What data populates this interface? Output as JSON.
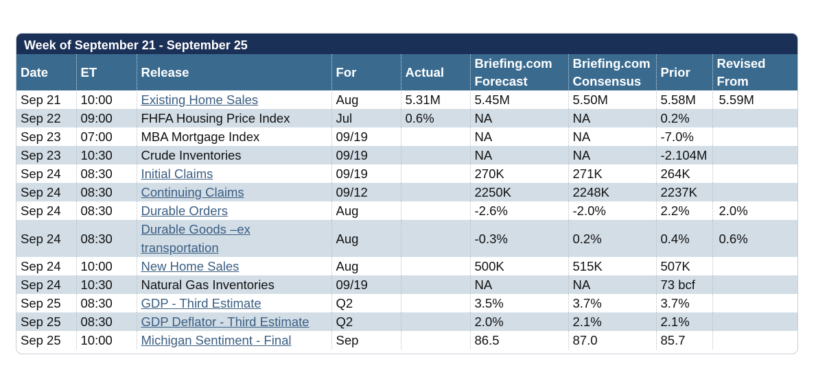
{
  "colors": {
    "week_bar_bg": "#1b3057",
    "header_bg": "#3a6b8f",
    "alt_row_bg": "#d2dde6",
    "link_color": "#3b5e82"
  },
  "week_title": "Week of September 21 - September 25",
  "columns": {
    "date": "Date",
    "et": "ET",
    "release": "Release",
    "for": "For",
    "actual": "Actual",
    "forecast": [
      "Briefing.com",
      "Forecast"
    ],
    "consensus": [
      "Briefing.com",
      "Consensus"
    ],
    "prior": "Prior",
    "revised": [
      "Revised",
      "From"
    ]
  },
  "rows": [
    {
      "date": "Sep 21",
      "et": "10:00",
      "release": "Existing Home Sales",
      "link": true,
      "for": "Aug",
      "actual": "5.31M",
      "forecast": "5.45M",
      "consensus": "5.50M",
      "prior": "5.58M",
      "revised": "5.59M"
    },
    {
      "date": "Sep 22",
      "et": "09:00",
      "release": "FHFA Housing Price Index",
      "link": false,
      "for": "Jul",
      "actual": "0.6%",
      "forecast": "NA",
      "consensus": "NA",
      "prior": "0.2%",
      "revised": ""
    },
    {
      "date": "Sep 23",
      "et": "07:00",
      "release": "MBA Mortgage Index",
      "link": false,
      "for": "09/19",
      "actual": "",
      "forecast": "NA",
      "consensus": "NA",
      "prior": "-7.0%",
      "revised": ""
    },
    {
      "date": "Sep 23",
      "et": "10:30",
      "release": "Crude Inventories",
      "link": false,
      "for": "09/19",
      "actual": "",
      "forecast": "NA",
      "consensus": "NA",
      "prior": "-2.104M",
      "revised": ""
    },
    {
      "date": "Sep 24",
      "et": "08:30",
      "release": "Initial Claims",
      "link": true,
      "for": "09/19",
      "actual": "",
      "forecast": "270K",
      "consensus": "271K",
      "prior": "264K",
      "revised": ""
    },
    {
      "date": "Sep 24",
      "et": "08:30",
      "release": "Continuing Claims",
      "link": true,
      "for": "09/12",
      "actual": "",
      "forecast": "2250K",
      "consensus": "2248K",
      "prior": "2237K",
      "revised": ""
    },
    {
      "date": "Sep 24",
      "et": "08:30",
      "release": "Durable Orders",
      "link": true,
      "for": "Aug",
      "actual": "",
      "forecast": "-2.6%",
      "consensus": "-2.0%",
      "prior": "2.2%",
      "revised": "2.0%"
    },
    {
      "date": "Sep 24",
      "et": "08:30",
      "release": "Durable Goods –ex transportation",
      "link": true,
      "tall": true,
      "for": "Aug",
      "actual": "",
      "forecast": "-0.3%",
      "consensus": "0.2%",
      "prior": "0.4%",
      "revised": "0.6%"
    },
    {
      "date": "Sep 24",
      "et": "10:00",
      "release": "New Home Sales",
      "link": true,
      "for": "Aug",
      "actual": "",
      "forecast": "500K",
      "consensus": "515K",
      "prior": "507K",
      "revised": ""
    },
    {
      "date": "Sep 24",
      "et": "10:30",
      "release": "Natural Gas Inventories",
      "link": false,
      "for": "09/19",
      "actual": "",
      "forecast": "NA",
      "consensus": "NA",
      "prior": "73 bcf",
      "revised": ""
    },
    {
      "date": "Sep 25",
      "et": "08:30",
      "release": "GDP - Third Estimate",
      "link": true,
      "for": "Q2",
      "actual": "",
      "forecast": "3.5%",
      "consensus": "3.7%",
      "prior": "3.7%",
      "revised": ""
    },
    {
      "date": "Sep 25",
      "et": "08:30",
      "release": "GDP Deflator - Third Estimate",
      "link": true,
      "for": "Q2",
      "actual": "",
      "forecast": "2.0%",
      "consensus": "2.1%",
      "prior": "2.1%",
      "revised": ""
    },
    {
      "date": "Sep 25",
      "et": "10:00",
      "release": "Michigan Sentiment - Final",
      "link": true,
      "for": "Sep",
      "actual": "",
      "forecast": "86.5",
      "consensus": "87.0",
      "prior": "85.7",
      "revised": ""
    }
  ]
}
